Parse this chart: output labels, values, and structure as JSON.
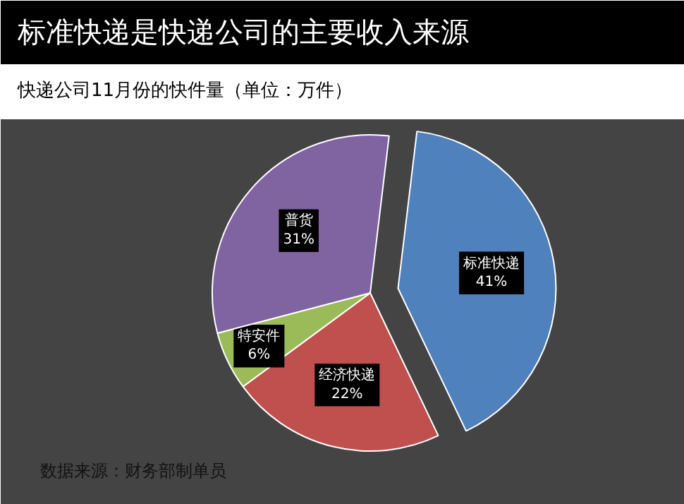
{
  "chart_data": {
    "type": "pie",
    "title": "标准快递是快递公司的主要收入来源",
    "subtitle": "快递公司11月份的快件量（单位：万件）",
    "categories": [
      "标准快递",
      "经济快递",
      "特安件",
      "普货"
    ],
    "values": [
      41,
      22,
      6,
      31
    ],
    "value_labels": [
      "41%",
      "22%",
      "6%",
      "31%"
    ],
    "colors": [
      "#4f81bd",
      "#c0504d",
      "#9bbb59",
      "#8064a2"
    ],
    "annotations": [
      "数据来源：财务部制单员"
    ]
  }
}
